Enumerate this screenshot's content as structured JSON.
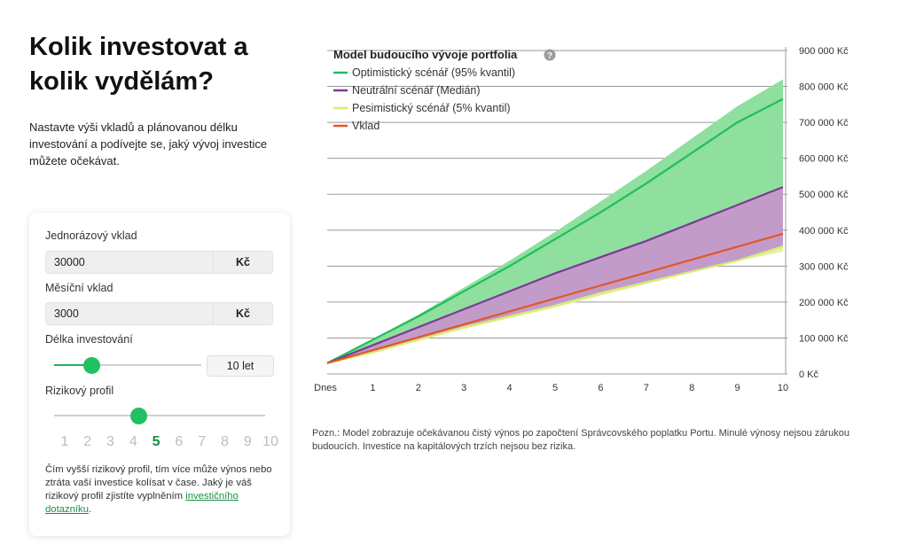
{
  "page": {
    "title": "Kolik investovat a kolik vydělám?",
    "intro": "Nastavte výši vkladů a plánovanou délku investování a podívejte se, jaký vývoj investice můžete očekávat."
  },
  "form": {
    "lump_sum_label": "Jednorázový vklad",
    "lump_sum_value": "30000",
    "monthly_label": "Měsíční vklad",
    "monthly_value": "3000",
    "currency": "Kč",
    "duration_label": "Délka investování",
    "duration_value": "10 let",
    "duration_fraction": 0.25,
    "risk_label": "Rizikový profil",
    "risk_levels": [
      "1",
      "2",
      "3",
      "4",
      "5",
      "6",
      "7",
      "8",
      "9",
      "10"
    ],
    "risk_selected": "5",
    "risk_note": "Čím vyšší rizikový profil, tím více může výnos nebo ztráta vaší investice kolísat v čase. Jaký je váš rizikový profil zjistíte vyplněním",
    "risk_note_link": "investičního dotazníku",
    "risk_note_end": "."
  },
  "chart_data": {
    "type": "area",
    "title": "Model budoucího vývoje portfolia",
    "x": [
      "Dnes",
      "1",
      "2",
      "3",
      "4",
      "5",
      "6",
      "7",
      "8",
      "9",
      "10"
    ],
    "y_ticks": [
      "0 Kč",
      "100 000 Kč",
      "200 000 Kč",
      "300 000 Kč",
      "400 000 Kč",
      "500 000 Kč",
      "600 000 Kč",
      "700 000 Kč",
      "800 000 Kč",
      "900 000 Kč"
    ],
    "ylim": [
      0,
      900000
    ],
    "grid": true,
    "legend_position": "top-left",
    "series": [
      {
        "name": "Optimistický scénář (95% kvantil)",
        "color": "#1fbe5c",
        "values": [
          30000,
          95000,
          160000,
          230000,
          300000,
          375000,
          450000,
          530000,
          615000,
          700000,
          765000
        ]
      },
      {
        "name": "Neutrální scénář (Medián)",
        "color": "#7b3b93",
        "values": [
          30000,
          80000,
          130000,
          180000,
          230000,
          280000,
          325000,
          370000,
          420000,
          470000,
          520000
        ]
      },
      {
        "name": "Pesimistický scénář (5% kvantil)",
        "color": "#d9ec72",
        "values": [
          30000,
          60000,
          95000,
          130000,
          160000,
          190000,
          225000,
          255000,
          285000,
          315000,
          355000
        ]
      },
      {
        "name": "Vklad",
        "color": "#e0572b",
        "values": [
          30000,
          66000,
          102000,
          138000,
          174000,
          210000,
          246000,
          282000,
          318000,
          354000,
          390000
        ]
      }
    ],
    "band_upper": [
      30000,
      97000,
      165000,
      240000,
      315000,
      395000,
      480000,
      565000,
      655000,
      745000,
      820000
    ],
    "band_lower": [
      30000,
      60000,
      92000,
      125000,
      155000,
      185000,
      218000,
      250000,
      282000,
      314000,
      340000
    ]
  },
  "footnote": "Pozn.: Model zobrazuje očekávanou čistý výnos po započtení Správcovského poplatku Portu. Minulé výnosy nejsou zárukou budoucích. Investice na kapitálových trzích nejsou bez rizika."
}
